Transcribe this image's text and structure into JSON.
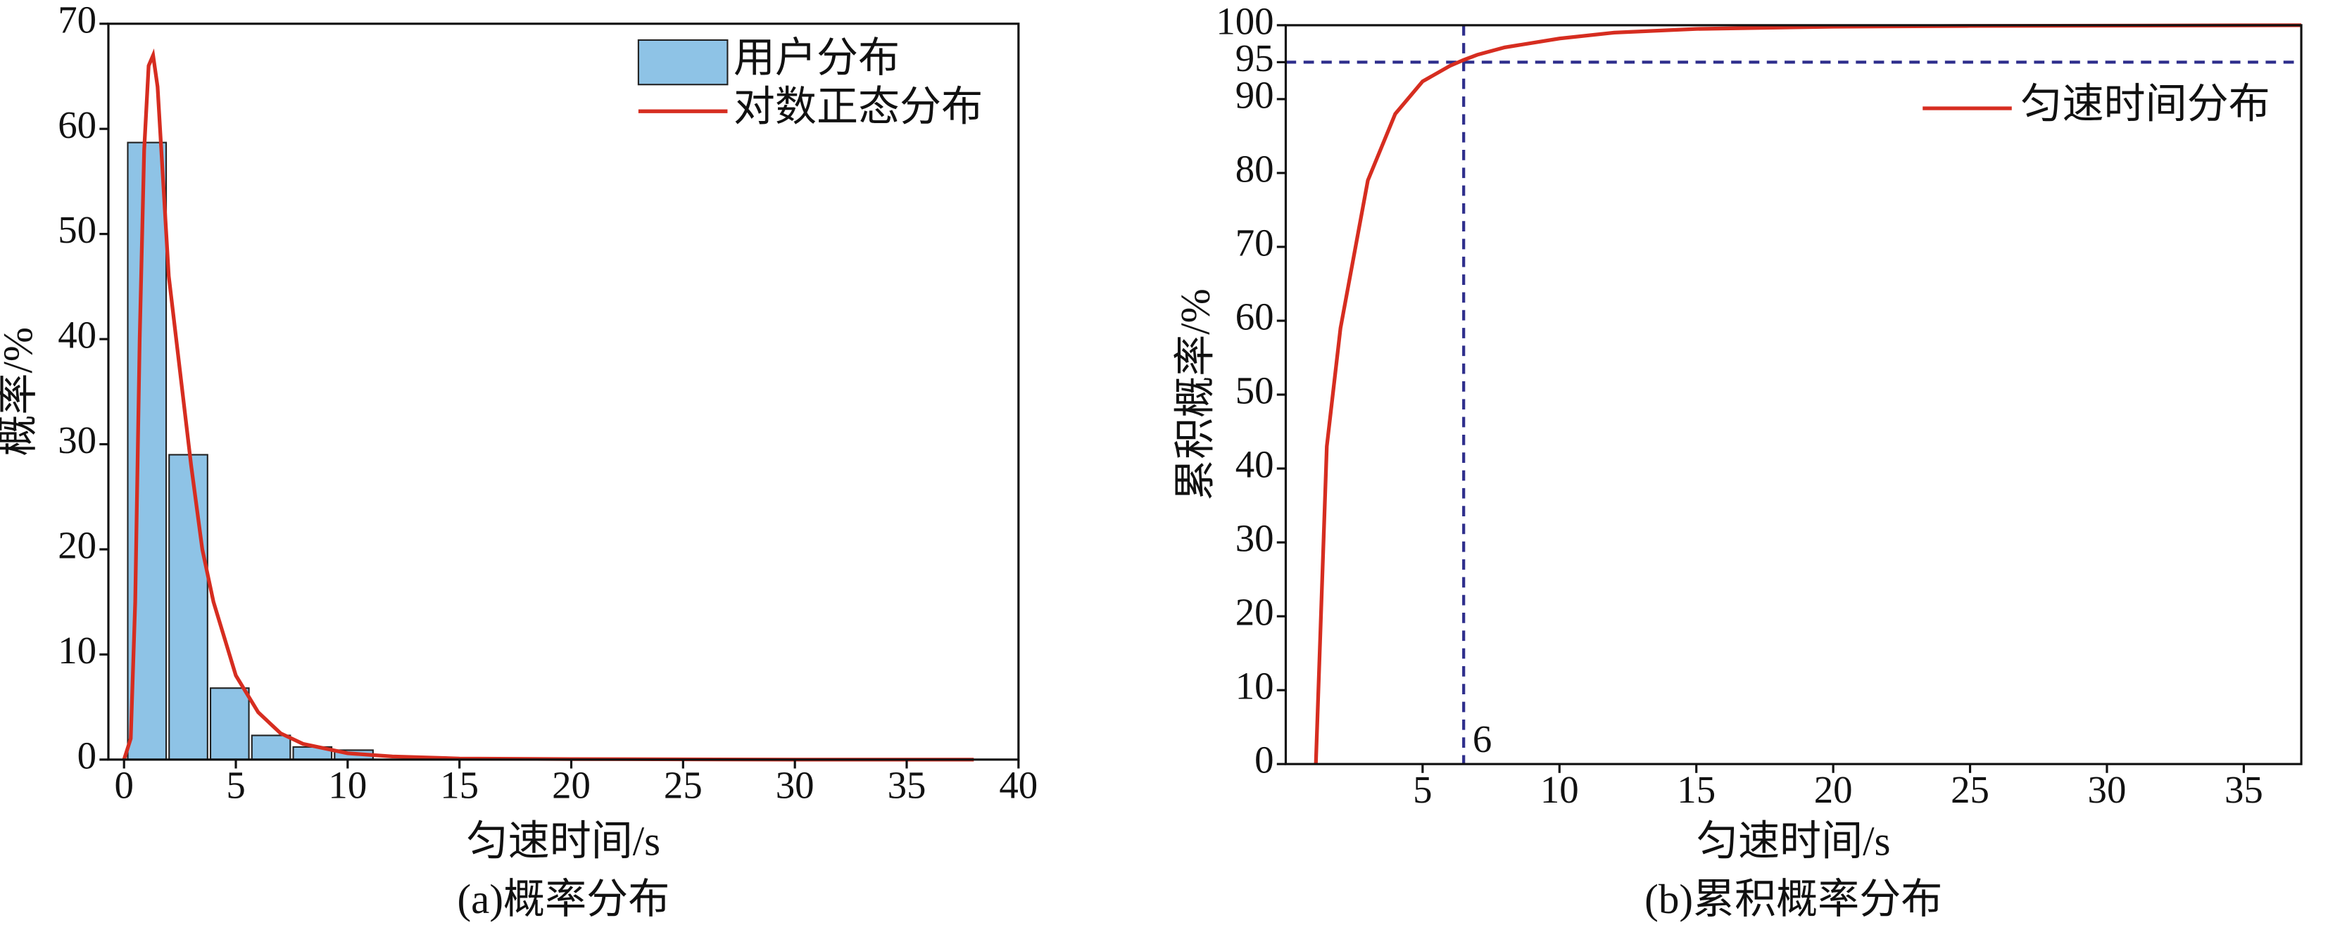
{
  "chart_data": [
    {
      "type": "histogram",
      "name": "用户分布",
      "color": "#8ec3e6",
      "edgecolor": "#222222",
      "bins": [
        0.1,
        1.95,
        3.8,
        5.65,
        7.5,
        9.35,
        11.2
      ],
      "values": [
        58.7,
        29,
        6.8,
        2.3,
        1.2,
        0.9
      ],
      "curve": {
        "name": "对数正态分布",
        "color": "#d62d20",
        "x": [
          0,
          0.3,
          0.5,
          0.7,
          0.9,
          1.1,
          1.3,
          1.5,
          2,
          2.5,
          3,
          3.5,
          4,
          5,
          6,
          7,
          8,
          10,
          12,
          15,
          20,
          30,
          38
        ],
        "y": [
          0,
          2,
          15,
          40,
          58,
          66,
          67,
          64,
          46,
          37,
          28,
          20,
          15,
          8,
          4.5,
          2.5,
          1.5,
          0.6,
          0.3,
          0.1,
          0.05,
          0,
          0
        ]
      },
      "xlim": [
        -0.7,
        40
      ],
      "xticks": [
        0,
        5,
        10,
        15,
        20,
        25,
        30,
        35,
        40
      ],
      "ylim": [
        0,
        70
      ],
      "yticks": [
        0,
        10,
        20,
        30,
        40,
        50,
        60,
        70
      ],
      "x_label": "匀速时间/s",
      "y_label": "概率/%",
      "caption": "(a)概率分布",
      "legend": "upper right"
    },
    {
      "type": "line",
      "series": [
        {
          "name": "匀速时间分布",
          "color": "#d62d20",
          "x": [
            1.1,
            1.5,
            2,
            3,
            4,
            5,
            6,
            6.5,
            7,
            8,
            10,
            12,
            15,
            20,
            25,
            37.1
          ],
          "values": [
            0,
            43,
            59,
            79,
            88,
            92.4,
            94.5,
            95.3,
            96,
            97,
            98.2,
            99,
            99.5,
            99.8,
            99.9,
            100
          ]
        }
      ],
      "reference_lines": {
        "x": {
          "value": 6.5,
          "label": "6"
        },
        "y": 95,
        "color": "#2e2e8c"
      },
      "xlim": [
        0,
        37.1
      ],
      "xticks": [
        5,
        10,
        15,
        20,
        25,
        30,
        35
      ],
      "ylim": [
        0,
        100
      ],
      "yticks": [
        0,
        10,
        20,
        30,
        40,
        50,
        60,
        70,
        80,
        90,
        95,
        100
      ],
      "x_label": "匀速时间/s",
      "y_label": "累积概率/%",
      "caption": "(b)累积概率分布",
      "legend": "upper right"
    }
  ]
}
